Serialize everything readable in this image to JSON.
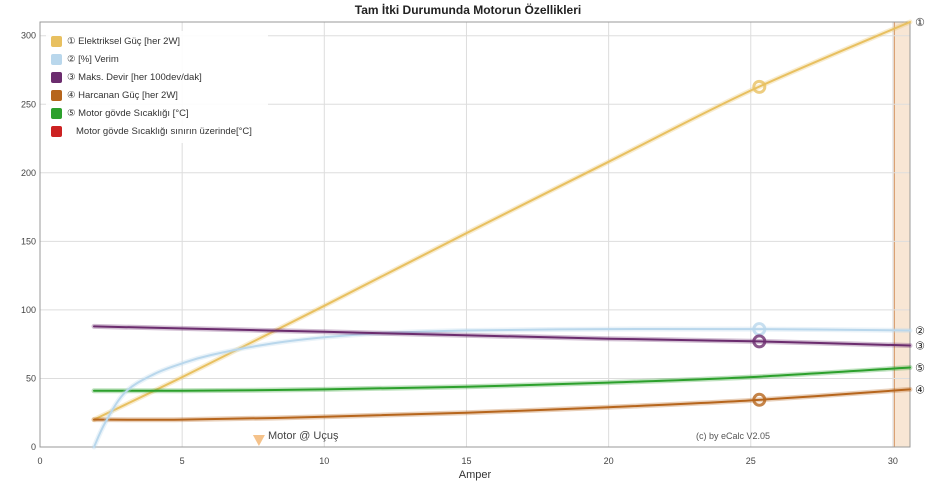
{
  "title": "Tam İtki Durumunda Motorun Özellikleri",
  "credit": "(c) by eCalc  V2.05",
  "chart_data": {
    "type": "line",
    "title": "Tam İtki Durumunda Motorun Özellikleri",
    "xlabel": "Amper",
    "ylabel": "",
    "xlim": [
      0,
      30.6
    ],
    "ylim": [
      0,
      310
    ],
    "xticks": [
      0,
      5,
      10,
      15,
      20,
      25,
      30
    ],
    "yticks": [
      0,
      50,
      100,
      150,
      200,
      250,
      300
    ],
    "grid": true,
    "legend_position": "top-left",
    "series": [
      {
        "name": "① Elektriksel Güç [her 2W]",
        "color": "#e8c060",
        "end_label": "①",
        "x": [
          1.9,
          5,
          10,
          15,
          20,
          25,
          30.6
        ],
        "y": [
          20,
          51,
          103,
          156,
          208,
          260,
          310
        ]
      },
      {
        "name": "② [%] Verim",
        "color": "#b9d7ec",
        "end_label": "②",
        "x": [
          1.9,
          2.3,
          3,
          4,
          5,
          6,
          8,
          10,
          12,
          15,
          20,
          25,
          30.6
        ],
        "y": [
          0,
          18,
          40,
          53,
          61,
          67,
          75,
          80,
          83,
          85,
          86,
          86,
          85
        ]
      },
      {
        "name": "③ Maks. Devir [her 100dev/dak]",
        "color": "#6b2c6e",
        "end_label": "③",
        "x": [
          1.9,
          10,
          20,
          25.3,
          30.6
        ],
        "y": [
          88,
          84,
          79,
          77,
          74
        ]
      },
      {
        "name": "④ Harcanan Güç [her 2W]",
        "color": "#b6651c",
        "end_label": "④",
        "x": [
          1.9,
          5,
          10,
          15,
          20,
          25,
          30.6
        ],
        "y": [
          20,
          20,
          22,
          25,
          29,
          34,
          42
        ]
      },
      {
        "name": "⑤ Motor gövde Sıcaklığı [°C]",
        "color": "#2ca02c",
        "end_label": "⑤",
        "x": [
          1.9,
          5,
          10,
          15,
          20,
          25,
          30.6
        ],
        "y": [
          41,
          41,
          42,
          44,
          47,
          51,
          58
        ]
      },
      {
        "name": "Motor gövde Sıcaklığı sınırın üzerinde[°C]",
        "color": "#cc2222",
        "x": [],
        "y": []
      }
    ],
    "annotations": [
      {
        "label": "Motor @ Uçuş",
        "x": 7.7,
        "color": "#f5c28a"
      }
    ],
    "operating_point_x": 25.3,
    "highlight_band": {
      "x_from": 30.05,
      "x_to": 30.6,
      "color": "#f8e6d4"
    }
  }
}
